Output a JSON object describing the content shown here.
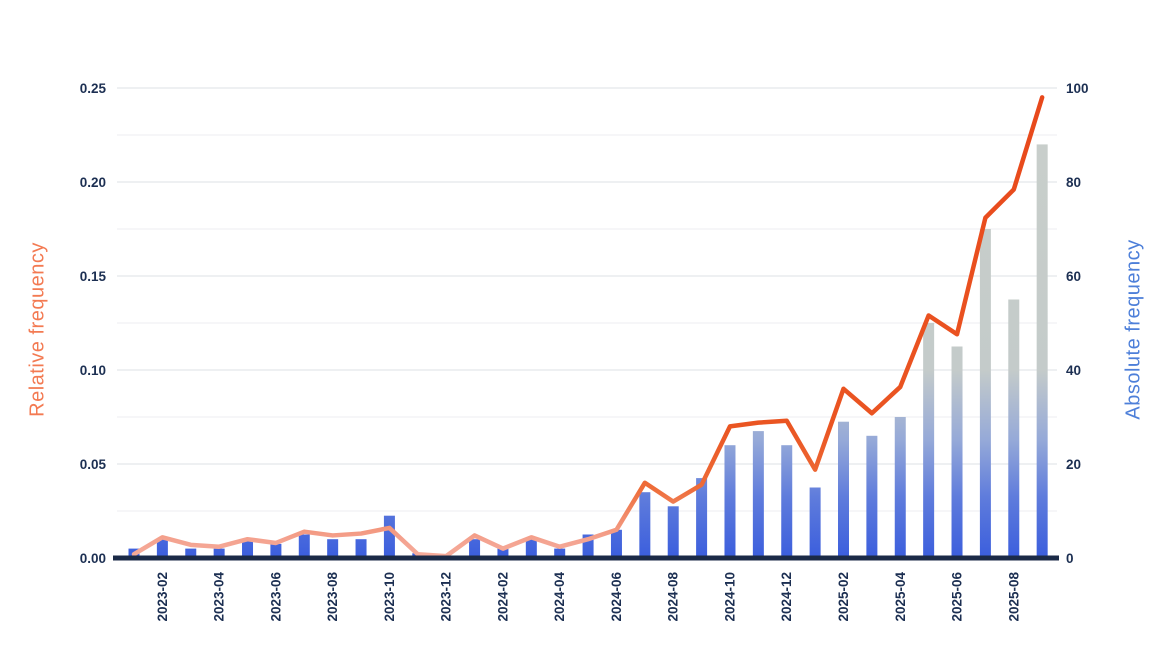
{
  "chart_data": {
    "type": "bar",
    "subtype": "dual-axis bar+line, monthly time series",
    "title": "",
    "categories": [
      "2023-01",
      "2023-02",
      "2023-03",
      "2023-04",
      "2023-05",
      "2023-06",
      "2023-07",
      "2023-08",
      "2023-09",
      "2023-10",
      "2023-11",
      "2023-12",
      "2024-01",
      "2024-02",
      "2024-03",
      "2024-04",
      "2024-05",
      "2024-06",
      "2024-07",
      "2024-08",
      "2024-09",
      "2024-10",
      "2024-11",
      "2024-12",
      "2025-01",
      "2025-02",
      "2025-03",
      "2025-04",
      "2025-05",
      "2025-06",
      "2025-07",
      "2025-08",
      "2025-09"
    ],
    "x_tick_labels": [
      "2023-02",
      "2023-04",
      "2023-06",
      "2023-08",
      "2023-10",
      "2023-12",
      "2024-02",
      "2024-04",
      "2024-06",
      "2024-08",
      "2024-10",
      "2024-12",
      "2025-02",
      "2025-04",
      "2025-06",
      "2025-08"
    ],
    "series": [
      {
        "name": "Absolute frequency",
        "type": "bar",
        "axis": "right",
        "values": [
          2,
          4,
          2,
          2,
          4,
          3,
          5,
          4,
          4,
          9,
          1,
          0,
          4,
          2,
          4,
          2,
          5,
          6,
          14,
          11,
          17,
          24,
          27,
          24,
          15,
          29,
          26,
          30,
          50,
          45,
          70,
          55,
          88
        ]
      },
      {
        "name": "Relative frequency",
        "type": "line",
        "axis": "left",
        "values": [
          0.002,
          0.011,
          0.007,
          0.006,
          0.01,
          0.008,
          0.014,
          0.012,
          0.013,
          0.016,
          0.002,
          0.001,
          0.012,
          0.005,
          0.011,
          0.006,
          0.01,
          0.015,
          0.04,
          0.03,
          0.039,
          0.07,
          0.072,
          0.073,
          0.047,
          0.09,
          0.077,
          0.091,
          0.129,
          0.119,
          0.181,
          0.196,
          0.245
        ]
      }
    ],
    "ylabel_left": "Relative frequency",
    "ylabel_right": "Absolute frequency",
    "xlabel": "",
    "axis_left": {
      "min": 0,
      "max": 0.25,
      "ticks": [
        "0.00",
        "0.05",
        "0.10",
        "0.15",
        "0.20",
        "0.25"
      ],
      "tick_values": [
        0,
        0.05,
        0.1,
        0.15,
        0.2,
        0.25
      ]
    },
    "axis_right": {
      "min": 0,
      "max": 100,
      "ticks": [
        "0",
        "20",
        "40",
        "60",
        "80",
        "100"
      ],
      "tick_values": [
        0,
        20,
        40,
        60,
        80,
        100
      ]
    },
    "grid": "horizontal major (0.05 steps) and faint minor (0.025 steps)",
    "legend_position": "none",
    "colors": {
      "line_top": "#e8481b",
      "line_mid": "#ea5522",
      "line_low": "#f4a28f",
      "line_bottom": "#f6ad9c",
      "bar_bottom": "#3b5edd",
      "bar_mid": "#95a9d8",
      "bar_top": "#c9cfcb",
      "axis_line": "#1b2a47",
      "tick_text": "#1c2f52",
      "grid_major": "#e4e6e9",
      "grid_minor": "#f0f1f3",
      "label_left": "#f37a52",
      "label_right": "#4d7fd9"
    }
  }
}
